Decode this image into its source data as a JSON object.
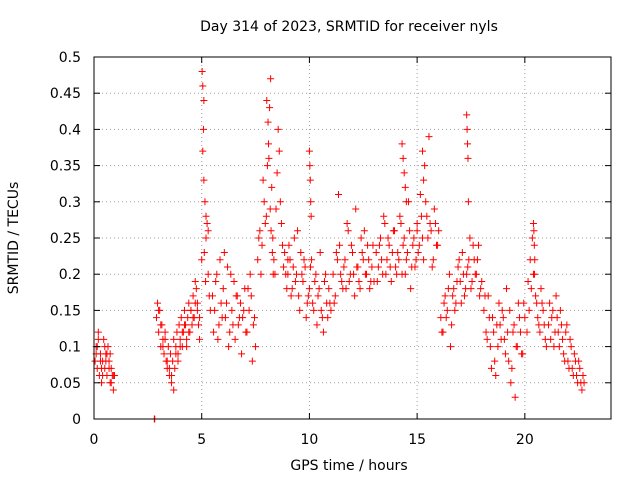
{
  "chart_data": {
    "type": "scatter",
    "title": "Day 314 of 2023, SRMTID for receiver nyls",
    "xlabel": "GPS time / hours",
    "ylabel": "SRMTID / TECUs",
    "xlim": [
      0,
      24
    ],
    "ylim": [
      0,
      0.5
    ],
    "xticks": [
      0,
      5,
      10,
      15,
      20
    ],
    "xtick_labels": [
      "0",
      "5",
      "10",
      "15",
      "20"
    ],
    "yticks": [
      0,
      0.05,
      0.1,
      0.15,
      0.2,
      0.25,
      0.3,
      0.35,
      0.4,
      0.45,
      0.5
    ],
    "ytick_labels": [
      "0",
      "0.05",
      "0.1",
      "0.15",
      "0.2",
      "0.25",
      "0.3",
      "0.35",
      "0.4",
      "0.45",
      "0.5"
    ],
    "grid": true,
    "marker": "plus",
    "color": "#ff0000",
    "series": [
      {
        "name": "SRMTID",
        "x": [
          0.05,
          0.1,
          0.15,
          0.2,
          0.25,
          0.3,
          0.35,
          0.4,
          0.45,
          0.5,
          0.55,
          0.6,
          0.65,
          0.7,
          0.75,
          0.8,
          0.85,
          0.9,
          0.1,
          0.3,
          0.5,
          0.7,
          0.9,
          0.2,
          0.4,
          0.6,
          0.8,
          0.15,
          0.35,
          0.55,
          0.75,
          0.95,
          2.8,
          2.82,
          2.9,
          2.95,
          3.0,
          3.05,
          3.1,
          3.15,
          3.2,
          3.25,
          3.3,
          3.35,
          3.4,
          3.45,
          3.5,
          3.55,
          3.6,
          3.65,
          3.7,
          3.75,
          3.8,
          3.85,
          3.9,
          3.95,
          4.0,
          4.05,
          4.1,
          4.15,
          4.2,
          4.25,
          4.3,
          4.35,
          4.4,
          4.45,
          4.5,
          4.55,
          4.6,
          4.65,
          4.7,
          4.75,
          4.8,
          4.85,
          4.9,
          3.0,
          3.2,
          3.4,
          3.6,
          3.8,
          4.0,
          4.2,
          4.4,
          4.6,
          4.8,
          3.1,
          3.3,
          3.5,
          3.7,
          3.9,
          4.1,
          4.3,
          4.5,
          4.7,
          4.9,
          5.0,
          5.02,
          5.05,
          5.08,
          5.1,
          5.15,
          5.2,
          5.25,
          5.3,
          5.35,
          5.4,
          5.05,
          5.1,
          5.2,
          5.3,
          5.12,
          5.18,
          5.5,
          5.6,
          5.7,
          5.8,
          5.9,
          6.0,
          6.1,
          6.2,
          6.3,
          6.4,
          6.5,
          6.6,
          6.7,
          6.8,
          6.9,
          7.0,
          7.1,
          7.2,
          7.3,
          7.4,
          7.5,
          5.55,
          5.65,
          5.75,
          5.85,
          5.95,
          6.05,
          6.15,
          6.25,
          6.35,
          6.45,
          6.55,
          6.65,
          6.75,
          6.85,
          6.95,
          7.05,
          7.15,
          7.25,
          7.35,
          7.45,
          7.6,
          7.7,
          7.8,
          7.9,
          8.0,
          8.05,
          8.1,
          8.15,
          8.2,
          8.25,
          8.3,
          8.35,
          8.4,
          8.45,
          8.5,
          8.55,
          8.6,
          8.65,
          8.7,
          8.75,
          8.8,
          8.85,
          8.9,
          8.95,
          9.0,
          7.65,
          7.75,
          7.85,
          7.95,
          8.02,
          8.08,
          8.12,
          8.18,
          8.22,
          8.28,
          8.32,
          9.0,
          9.1,
          9.2,
          9.3,
          9.4,
          9.5,
          9.6,
          9.7,
          9.8,
          9.9,
          10.0,
          10.1,
          10.2,
          10.3,
          10.4,
          10.5,
          10.6,
          10.7,
          10.8,
          10.9,
          11.0,
          9.05,
          9.15,
          9.25,
          9.35,
          9.45,
          9.55,
          9.65,
          9.75,
          9.85,
          9.95,
          10.05,
          10.15,
          10.25,
          10.35,
          10.45,
          10.55,
          10.65,
          10.75,
          10.85,
          10.95,
          10.0,
          10.02,
          10.04,
          10.06,
          10.08,
          11.1,
          11.2,
          11.3,
          11.4,
          11.5,
          11.6,
          11.7,
          11.8,
          11.9,
          12.0,
          12.1,
          12.2,
          12.3,
          12.4,
          12.5,
          12.6,
          12.7,
          12.8,
          12.9,
          13.0,
          11.15,
          11.25,
          11.35,
          11.45,
          11.55,
          11.65,
          11.75,
          11.85,
          11.95,
          12.05,
          12.15,
          12.25,
          12.35,
          12.45,
          12.55,
          12.65,
          12.75,
          12.85,
          12.95,
          13.1,
          13.2,
          13.3,
          13.4,
          13.5,
          13.6,
          13.7,
          13.8,
          13.9,
          14.0,
          14.1,
          14.2,
          14.3,
          14.4,
          14.5,
          14.6,
          14.7,
          14.8,
          14.9,
          15.0,
          13.15,
          13.25,
          13.35,
          13.45,
          13.55,
          13.65,
          13.75,
          13.85,
          13.95,
          14.05,
          14.15,
          14.25,
          14.35,
          14.45,
          14.55,
          14.65,
          14.75,
          14.85,
          14.95,
          14.3,
          14.35,
          14.4,
          14.45,
          14.5,
          15.0,
          15.1,
          15.2,
          15.3,
          15.4,
          15.5,
          15.6,
          15.7,
          15.8,
          15.9,
          16.0,
          15.05,
          15.15,
          15.25,
          15.35,
          15.45,
          15.55,
          15.65,
          15.75,
          15.85,
          15.95,
          15.25,
          15.3,
          16.1,
          16.2,
          16.3,
          16.4,
          16.5,
          16.6,
          16.7,
          16.8,
          16.9,
          17.0,
          17.1,
          17.2,
          17.3,
          17.4,
          17.5,
          17.6,
          17.7,
          17.8,
          17.9,
          18.0,
          16.15,
          16.25,
          16.35,
          16.45,
          16.55,
          16.65,
          16.75,
          16.85,
          16.95,
          17.05,
          17.15,
          17.25,
          17.35,
          17.45,
          17.55,
          17.65,
          17.75,
          17.85,
          17.95,
          17.3,
          17.32,
          17.34,
          17.36,
          17.38,
          18.1,
          18.2,
          18.3,
          18.4,
          18.5,
          18.6,
          18.7,
          18.8,
          18.9,
          19.0,
          19.1,
          19.2,
          19.3,
          19.4,
          19.5,
          19.6,
          19.7,
          19.8,
          19.9,
          20.0,
          18.15,
          18.25,
          18.35,
          18.45,
          18.55,
          18.65,
          18.75,
          18.85,
          18.95,
          19.05,
          19.15,
          19.25,
          19.35,
          19.45,
          19.55,
          19.65,
          19.75,
          19.85,
          19.95,
          20.1,
          20.2,
          20.3,
          20.4,
          20.5,
          20.6,
          20.7,
          20.8,
          20.9,
          21.0,
          20.15,
          20.25,
          20.35,
          20.45,
          20.55,
          20.65,
          20.75,
          20.85,
          20.95,
          20.4,
          20.42,
          20.44,
          20.46,
          21.1,
          21.2,
          21.3,
          21.4,
          21.5,
          21.6,
          21.7,
          21.8,
          21.9,
          22.0,
          22.1,
          22.2,
          22.3,
          22.4,
          22.5,
          22.6,
          22.7,
          21.15,
          21.25,
          21.35,
          21.45,
          21.55,
          21.65,
          21.75,
          21.85,
          21.95,
          22.05,
          22.15,
          22.25,
          22.35,
          22.45,
          22.55,
          22.65,
          22.75
        ],
        "y": [
          0.08,
          0.1,
          0.07,
          0.12,
          0.06,
          0.09,
          0.05,
          0.08,
          0.11,
          0.07,
          0.09,
          0.06,
          0.1,
          0.08,
          0.05,
          0.07,
          0.06,
          0.04,
          0.09,
          0.08,
          0.1,
          0.07,
          0.06,
          0.11,
          0.06,
          0.09,
          0.05,
          0.1,
          0.07,
          0.08,
          0.09,
          0.06,
          0.0,
          0.0,
          0.14,
          0.16,
          0.12,
          0.15,
          0.1,
          0.13,
          0.11,
          0.09,
          0.12,
          0.08,
          0.07,
          0.1,
          0.06,
          0.09,
          0.05,
          0.08,
          0.11,
          0.07,
          0.1,
          0.12,
          0.09,
          0.13,
          0.11,
          0.14,
          0.1,
          0.12,
          0.15,
          0.13,
          0.11,
          0.14,
          0.16,
          0.12,
          0.15,
          0.13,
          0.17,
          0.14,
          0.16,
          0.18,
          0.15,
          0.13,
          0.11,
          0.15,
          0.1,
          0.08,
          0.06,
          0.09,
          0.1,
          0.13,
          0.12,
          0.14,
          0.16,
          0.13,
          0.11,
          0.07,
          0.04,
          0.08,
          0.12,
          0.1,
          0.15,
          0.19,
          0.14,
          0.22,
          0.48,
          0.46,
          0.4,
          0.33,
          0.3,
          0.25,
          0.27,
          0.2,
          0.17,
          0.15,
          0.37,
          0.44,
          0.28,
          0.26,
          0.23,
          0.19,
          0.17,
          0.15,
          0.2,
          0.13,
          0.16,
          0.18,
          0.14,
          0.21,
          0.12,
          0.15,
          0.19,
          0.17,
          0.13,
          0.16,
          0.14,
          0.18,
          0.12,
          0.15,
          0.17,
          0.13,
          0.1,
          0.12,
          0.19,
          0.11,
          0.22,
          0.14,
          0.23,
          0.16,
          0.1,
          0.2,
          0.13,
          0.11,
          0.17,
          0.14,
          0.09,
          0.15,
          0.12,
          0.18,
          0.2,
          0.08,
          0.14,
          0.22,
          0.26,
          0.24,
          0.3,
          0.28,
          0.35,
          0.38,
          0.43,
          0.47,
          0.32,
          0.25,
          0.22,
          0.2,
          0.29,
          0.34,
          0.4,
          0.37,
          0.3,
          0.27,
          0.24,
          0.21,
          0.23,
          0.2,
          0.18,
          0.22,
          0.25,
          0.2,
          0.33,
          0.27,
          0.44,
          0.41,
          0.36,
          0.29,
          0.26,
          0.23,
          0.2,
          0.2,
          0.22,
          0.18,
          0.25,
          0.2,
          0.17,
          0.23,
          0.19,
          0.21,
          0.16,
          0.18,
          0.22,
          0.15,
          0.2,
          0.17,
          0.23,
          0.14,
          0.19,
          0.16,
          0.18,
          0.15,
          0.24,
          0.17,
          0.21,
          0.19,
          0.26,
          0.15,
          0.2,
          0.22,
          0.14,
          0.17,
          0.21,
          0.16,
          0.19,
          0.13,
          0.18,
          0.15,
          0.12,
          0.2,
          0.14,
          0.16,
          0.37,
          0.35,
          0.33,
          0.3,
          0.28,
          0.2,
          0.17,
          0.22,
          0.24,
          0.19,
          0.21,
          0.18,
          0.26,
          0.2,
          0.23,
          0.17,
          0.21,
          0.19,
          0.25,
          0.22,
          0.2,
          0.24,
          0.18,
          0.21,
          0.19,
          0.16,
          0.23,
          0.31,
          0.2,
          0.18,
          0.22,
          0.27,
          0.19,
          0.24,
          0.2,
          0.29,
          0.21,
          0.18,
          0.23,
          0.26,
          0.2,
          0.22,
          0.19,
          0.24,
          0.23,
          0.21,
          0.25,
          0.2,
          0.27,
          0.22,
          0.24,
          0.19,
          0.26,
          0.21,
          0.23,
          0.28,
          0.2,
          0.25,
          0.22,
          0.3,
          0.18,
          0.24,
          0.21,
          0.27,
          0.19,
          0.24,
          0.22,
          0.28,
          0.2,
          0.25,
          0.21,
          0.23,
          0.26,
          0.2,
          0.22,
          0.27,
          0.24,
          0.2,
          0.23,
          0.26,
          0.21,
          0.25,
          0.22,
          0.38,
          0.36,
          0.34,
          0.32,
          0.3,
          0.26,
          0.24,
          0.28,
          0.22,
          0.3,
          0.25,
          0.27,
          0.21,
          0.29,
          0.24,
          0.26,
          0.23,
          0.31,
          0.25,
          0.35,
          0.28,
          0.39,
          0.26,
          0.22,
          0.27,
          0.24,
          0.37,
          0.33,
          0.14,
          0.12,
          0.17,
          0.15,
          0.2,
          0.13,
          0.18,
          0.16,
          0.21,
          0.19,
          0.23,
          0.17,
          0.2,
          0.22,
          0.18,
          0.24,
          0.2,
          0.22,
          0.17,
          0.19,
          0.12,
          0.16,
          0.14,
          0.18,
          0.1,
          0.17,
          0.15,
          0.19,
          0.22,
          0.16,
          0.2,
          0.18,
          0.21,
          0.25,
          0.19,
          0.22,
          0.2,
          0.24,
          0.18,
          0.42,
          0.4,
          0.38,
          0.36,
          0.3,
          0.15,
          0.12,
          0.17,
          0.1,
          0.14,
          0.08,
          0.13,
          0.16,
          0.11,
          0.14,
          0.09,
          0.12,
          0.15,
          0.07,
          0.13,
          0.1,
          0.16,
          0.12,
          0.09,
          0.14,
          0.17,
          0.11,
          0.14,
          0.07,
          0.12,
          0.06,
          0.1,
          0.13,
          0.15,
          0.11,
          0.18,
          0.08,
          0.05,
          0.12,
          0.03,
          0.1,
          0.14,
          0.09,
          0.16,
          0.12,
          0.15,
          0.18,
          0.2,
          0.17,
          0.14,
          0.12,
          0.16,
          0.13,
          0.1,
          0.19,
          0.22,
          0.25,
          0.2,
          0.16,
          0.13,
          0.18,
          0.15,
          0.11,
          0.27,
          0.26,
          0.24,
          0.22,
          0.13,
          0.11,
          0.15,
          0.12,
          0.14,
          0.1,
          0.13,
          0.09,
          0.12,
          0.08,
          0.11,
          0.07,
          0.09,
          0.06,
          0.08,
          0.05,
          0.06,
          0.16,
          0.14,
          0.1,
          0.17,
          0.12,
          0.15,
          0.11,
          0.08,
          0.13,
          0.07,
          0.1,
          0.06,
          0.08,
          0.05,
          0.07,
          0.04,
          0.05
        ]
      }
    ]
  }
}
